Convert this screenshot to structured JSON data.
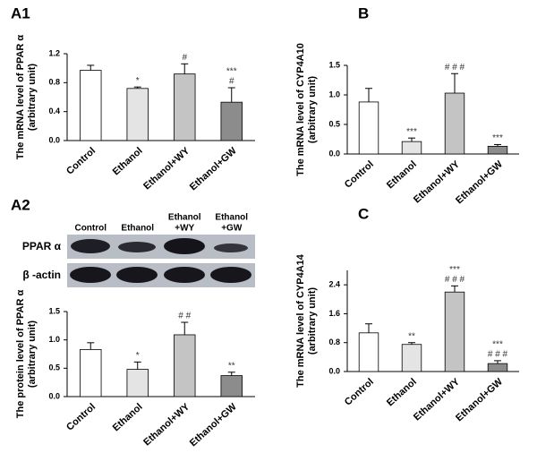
{
  "chart_data": [
    {
      "type": "bar",
      "title": "A1",
      "ylabel": [
        "The mRNA level of PPAR α",
        "(arbitrary unit)"
      ],
      "categories": [
        "Control",
        "Ethanol",
        "Ethanol+WY",
        "Ethanol+GW"
      ],
      "values": [
        0.97,
        0.72,
        0.92,
        0.53
      ],
      "errors": [
        0.07,
        0.02,
        0.14,
        0.2
      ],
      "annotations": [
        null,
        [
          "*"
        ],
        [
          "#"
        ],
        [
          "***",
          "#"
        ]
      ],
      "colors": [
        "#ffffff",
        "#e4e4e4",
        "#c4c4c4",
        "#8c8c8c"
      ],
      "ylim": [
        0,
        1.2
      ],
      "yticks": [
        {
          "value": 0,
          "label": "0.0"
        },
        0.4,
        0.8,
        1.2
      ]
    },
    {
      "type": "bar",
      "title": "B",
      "ylabel": [
        "The mRNA level of CYP4A10",
        "(arbitrary unit)"
      ],
      "categories": [
        "Control",
        "Ethanol",
        "Ethanol+WY",
        "Ethanol+GW"
      ],
      "values": [
        0.88,
        0.21,
        1.03,
        0.13
      ],
      "errors": [
        0.23,
        0.06,
        0.33,
        0.03
      ],
      "annotations": [
        null,
        [
          "***"
        ],
        [
          "# # #"
        ],
        [
          "***"
        ]
      ],
      "colors": [
        "#ffffff",
        "#e4e4e4",
        "#c4c4c4",
        "#8c8c8c"
      ],
      "ylim": [
        0,
        1.5
      ],
      "yticks": [
        {
          "value": 0,
          "label": "0.0"
        },
        0.5,
        {
          "value": 1,
          "label": "1.0"
        },
        1.5
      ]
    },
    {
      "type": "bar",
      "title": "A2",
      "ylabel": [
        "The protein level of PPAR α",
        "(arbitrary unit)"
      ],
      "categories": [
        "Control",
        "Ethanol",
        "Ethanol+WY",
        "Ethanol+GW"
      ],
      "values": [
        0.83,
        0.48,
        1.09,
        0.37
      ],
      "errors": [
        0.12,
        0.13,
        0.22,
        0.06
      ],
      "annotations": [
        null,
        [
          "*"
        ],
        [
          "# #"
        ],
        [
          "**"
        ]
      ],
      "colors": [
        "#ffffff",
        "#e4e4e4",
        "#c4c4c4",
        "#8c8c8c"
      ],
      "ylim": [
        0,
        1.5
      ],
      "yticks": [
        {
          "value": 0,
          "label": "0.0"
        },
        0.5,
        {
          "value": 1,
          "label": "1.0"
        },
        1.5
      ]
    },
    {
      "type": "bar",
      "title": "C",
      "ylabel": [
        "The mRNA level of CYP4A14",
        "(arbitrary unit)"
      ],
      "categories": [
        "Control",
        "Ethanol",
        "Ethanol+WY",
        "Ethanol+GW"
      ],
      "values": [
        1.07,
        0.75,
        2.2,
        0.22
      ],
      "errors": [
        0.25,
        0.05,
        0.17,
        0.08
      ],
      "annotations": [
        null,
        [
          "**"
        ],
        [
          "***",
          "# # #"
        ],
        [
          "***",
          "# # #"
        ]
      ],
      "colors": [
        "#ffffff",
        "#e4e4e4",
        "#c4c4c4",
        "#8c8c8c"
      ],
      "ylim": [
        0,
        2.8
      ],
      "yticks": [
        {
          "value": 0,
          "label": "0.0"
        },
        0.8,
        1.6,
        2.4
      ]
    }
  ],
  "blot": {
    "lanes": [
      [
        "Control"
      ],
      [
        "Ethanol"
      ],
      [
        "Ethanol",
        "+WY"
      ],
      [
        "Ethanol",
        "+GW"
      ]
    ],
    "rows": [
      "PPAR α",
      "β -actin"
    ]
  }
}
